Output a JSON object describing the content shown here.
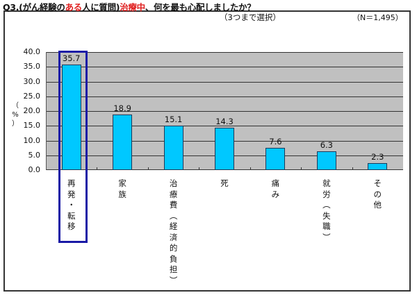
{
  "title": {
    "parts": [
      {
        "text": "Q3.(がん経験の",
        "color": "#111111"
      },
      {
        "text": "ある",
        "color": "#e02020"
      },
      {
        "text": "人に質問)",
        "color": "#111111"
      },
      {
        "text": "治療中",
        "color": "#e02020"
      },
      {
        "text": "、何を最も心配しましたか？",
        "color": "#111111"
      }
    ]
  },
  "subtitle": "（3つまで選択）",
  "sample_size": "（N＝1,495）",
  "y_axis_label": [
    "（",
    "%",
    "）"
  ],
  "y_ticks": [
    "40.0",
    "35.0",
    "30.0",
    "25.0",
    "20.0",
    "15.0",
    "10.0",
    "5.0",
    "0.0"
  ],
  "colors": {
    "bar": "#00c8ff",
    "plot_background": "#c0c0c0",
    "highlight_box": "#1a1aa6",
    "title_accent": "#e02020"
  },
  "chart_data": {
    "type": "bar",
    "title": "Q3.(がん経験のある人に質問)治療中、何を最も心配しましたか？",
    "subtitle": "（3つまで選択）",
    "annotation": "（N＝1,495）",
    "xlabel": "",
    "ylabel": "（%）",
    "ylim": [
      0,
      40
    ],
    "ytick_step": 5,
    "grid": true,
    "legend": null,
    "categories": [
      "再発・転移",
      "家族",
      "治療費（経済的負担）",
      "死",
      "痛み",
      "就労（失職）",
      "その他"
    ],
    "values": [
      35.7,
      18.9,
      15.1,
      14.3,
      7.6,
      6.3,
      2.3
    ],
    "value_labels": [
      "35.7",
      "18.9",
      "15.1",
      "14.3",
      "7.6",
      "6.3",
      "2.3"
    ],
    "highlighted_category": "再発・転移"
  }
}
